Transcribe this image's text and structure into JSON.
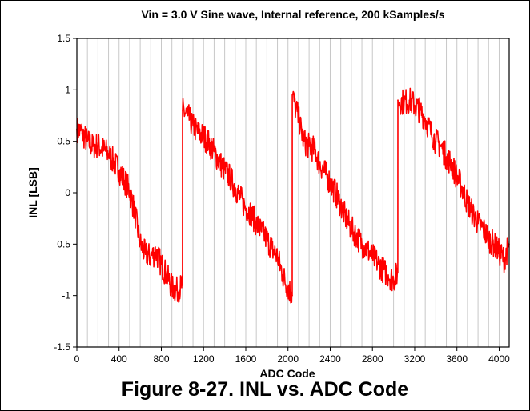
{
  "figure": {
    "caption": "Figure 8-27. INL vs. ADC Code"
  },
  "chart_data": {
    "type": "line",
    "title": "Vin = 3.0 V Sine wave, Internal reference, 200 kSamples/s",
    "xlabel": "ADC Code",
    "ylabel": "INL [LSB]",
    "xlim": [
      0,
      4095
    ],
    "ylim": [
      -1.5,
      1.5
    ],
    "x_ticks": [
      0,
      400,
      800,
      1200,
      1600,
      2000,
      2400,
      2800,
      3200,
      3600,
      4000
    ],
    "y_ticks": [
      1.5,
      1,
      0.5,
      0,
      -0.5,
      -1,
      -1.5
    ],
    "y_tick_labels": [
      "1.5",
      "1",
      "0.5",
      "0",
      "-0.5",
      "-1",
      "-1.5"
    ],
    "grid": "vertical lines every 100 codes",
    "series": [
      {
        "color": "#ff0000",
        "x": [
          0,
          50,
          100,
          150,
          200,
          250,
          300,
          350,
          400,
          450,
          500,
          550,
          600,
          650,
          700,
          750,
          800,
          850,
          900,
          950,
          1000,
          1001,
          1050,
          1100,
          1150,
          1200,
          1250,
          1300,
          1350,
          1400,
          1450,
          1500,
          1550,
          1600,
          1650,
          1700,
          1750,
          1800,
          1850,
          1900,
          1950,
          2000,
          2040,
          2041,
          2100,
          2150,
          2200,
          2250,
          2300,
          2350,
          2400,
          2450,
          2500,
          2550,
          2600,
          2650,
          2700,
          2750,
          2800,
          2850,
          2900,
          2950,
          3000,
          3040,
          3041,
          3100,
          3150,
          3200,
          3250,
          3300,
          3350,
          3400,
          3450,
          3500,
          3550,
          3600,
          3650,
          3700,
          3750,
          3800,
          3850,
          3900,
          3950,
          4000,
          4050,
          4095
        ],
        "y": [
          0.62,
          0.58,
          0.5,
          0.45,
          0.46,
          0.42,
          0.38,
          0.3,
          0.22,
          0.12,
          0.02,
          -0.2,
          -0.5,
          -0.6,
          -0.62,
          -0.58,
          -0.7,
          -0.8,
          -0.92,
          -0.95,
          -0.9,
          0.8,
          0.75,
          0.65,
          0.58,
          0.55,
          0.48,
          0.4,
          0.3,
          0.22,
          0.15,
          0.05,
          -0.05,
          -0.15,
          -0.2,
          -0.3,
          -0.38,
          -0.45,
          -0.55,
          -0.62,
          -0.8,
          -0.92,
          -1.0,
          0.95,
          0.72,
          0.5,
          0.45,
          0.42,
          0.28,
          0.2,
          0.1,
          0.0,
          -0.12,
          -0.25,
          -0.35,
          -0.42,
          -0.5,
          -0.55,
          -0.62,
          -0.68,
          -0.75,
          -0.8,
          -0.85,
          -0.78,
          0.9,
          0.88,
          0.9,
          0.85,
          0.8,
          0.72,
          0.6,
          0.5,
          0.45,
          0.35,
          0.28,
          0.15,
          0.05,
          -0.1,
          -0.2,
          -0.3,
          -0.35,
          -0.45,
          -0.5,
          -0.58,
          -0.65,
          -0.5
        ]
      }
    ]
  }
}
